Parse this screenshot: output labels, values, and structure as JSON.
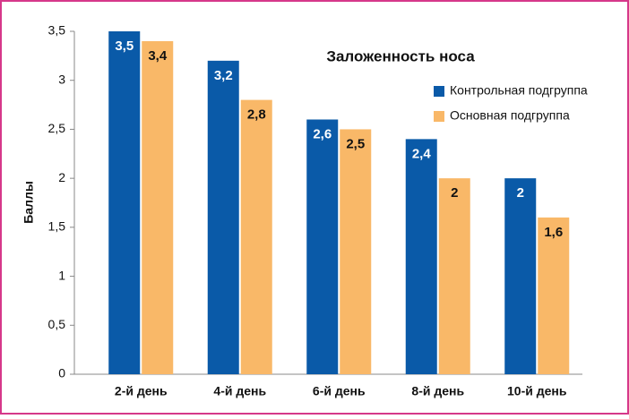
{
  "chart_data": {
    "type": "bar",
    "title": "Заложенность носа",
    "ylabel": "Баллы",
    "categories": [
      "2-й день",
      "4-й день",
      "6-й день",
      "8-й день",
      "10-й день"
    ],
    "series": [
      {
        "name": "Контрольная подгруппа",
        "color": "#0a5aa8",
        "values": [
          3.5,
          3.2,
          2.6,
          2.4,
          2
        ],
        "value_labels": [
          "3,5",
          "3,2",
          "2,6",
          "2,4",
          "2"
        ]
      },
      {
        "name": "Основная подгруппа",
        "color": "#f9b868",
        "values": [
          3.4,
          2.8,
          2.5,
          2,
          1.6
        ],
        "value_labels": [
          "3,4",
          "2,8",
          "2,5",
          "2",
          "1,6"
        ]
      }
    ],
    "ylim": [
      0,
      3.5
    ],
    "yticks": [
      0,
      {
        "value": 0.5,
        "label": "0,5"
      },
      1,
      {
        "value": 1.5,
        "label": "1,5"
      },
      2,
      {
        "value": 2.5,
        "label": "2,5"
      },
      3,
      {
        "value": 3.5,
        "label": "3,5"
      }
    ],
    "grid": false,
    "legend": "upper right"
  }
}
